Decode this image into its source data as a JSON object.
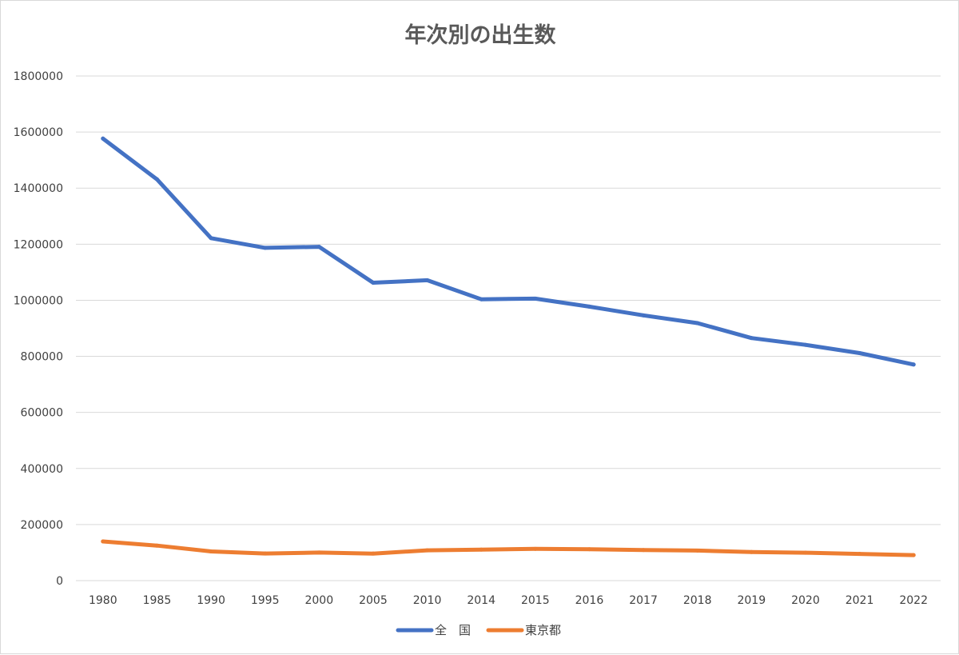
{
  "chart_data": {
    "type": "line",
    "title": "年次別の出生数",
    "categories": [
      "1980",
      "1985",
      "1990",
      "1995",
      "2000",
      "2005",
      "2010",
      "2014",
      "2015",
      "2016",
      "2017",
      "2018",
      "2019",
      "2020",
      "2021",
      "2022"
    ],
    "series": [
      {
        "name": "全　国",
        "color": "#4472c4",
        "values": [
          1576889,
          1431577,
          1221585,
          1187064,
          1190547,
          1062530,
          1071305,
          1003539,
          1005721,
          977242,
          946146,
          918400,
          865239,
          840835,
          811622,
          770759
        ]
      },
      {
        "name": "東京都",
        "color": "#ed7d31",
        "values": [
          139815,
          124968,
          103983,
          96823,
          100209,
          96542,
          108135,
          110629,
          113194,
          111962,
          108990,
          107150,
          101818,
          99661,
          95404,
          91097
        ]
      }
    ],
    "y_ticks": [
      "0",
      "200000",
      "400000",
      "600000",
      "800000",
      "1000000",
      "1200000",
      "1400000",
      "1600000",
      "1800000"
    ],
    "ylim": [
      0,
      1800000
    ],
    "xlabel": "",
    "ylabel": "",
    "grid": true,
    "legend_position": "bottom"
  }
}
